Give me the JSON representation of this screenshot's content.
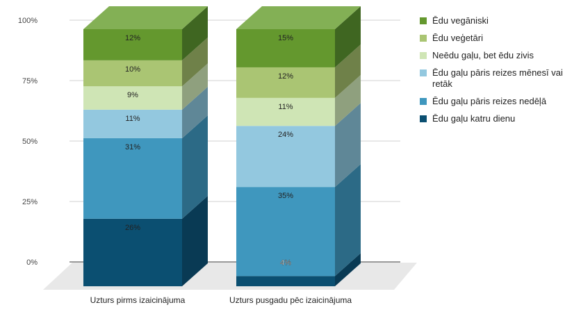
{
  "chart_data": {
    "type": "bar",
    "stacked": true,
    "normalized": true,
    "three_d": true,
    "categories": [
      "Uzturs pirms izaicinājuma",
      "Uzturs pusgadu pēc izaicinājuma"
    ],
    "series": [
      {
        "name": "Ēdu gaļu katru dienu",
        "color": "#0b4f71",
        "side": "#093a54",
        "values": [
          26,
          4
        ]
      },
      {
        "name": "Ēdu gaļu pāris reizes nedēļā",
        "color": "#3f97be",
        "side": "#2c6a86",
        "values": [
          31,
          35
        ]
      },
      {
        "name": "Ēdu gaļu pāris reizes mēnesī vai retāk",
        "color": "#93c8df",
        "side": "#5f8797",
        "values": [
          11,
          24
        ]
      },
      {
        "name": "Neēdu gaļu, bet ēdu zivis",
        "color": "#cfe5b5",
        "side": "#8fa07e",
        "values": [
          9,
          11
        ]
      },
      {
        "name": "Ēdu veģetāri",
        "color": "#aac573",
        "side": "#6f8149",
        "values": [
          10,
          12
        ]
      },
      {
        "name": "Ēdu vegāniski",
        "color": "#64982e",
        "side": "#3f6621",
        "values": [
          12,
          15
        ]
      }
    ],
    "y_ticks": [
      "0%",
      "25%",
      "50%",
      "75%",
      "100%"
    ],
    "ylim": [
      0,
      100
    ],
    "grid": true,
    "legend_position": "right",
    "top_face_color": "#83b055",
    "floor_color": "#e8e8e8"
  }
}
